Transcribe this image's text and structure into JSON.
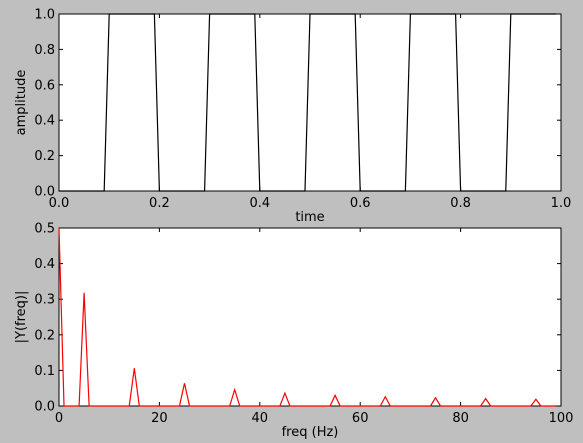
{
  "chart_data": [
    {
      "type": "line",
      "xlabel": "time",
      "ylabel": "amplitude",
      "xlim": [
        0,
        1
      ],
      "ylim": [
        0,
        1
      ],
      "xticks": [
        "0.0",
        "0.2",
        "0.4",
        "0.6",
        "0.8",
        "1.0"
      ],
      "yticks": [
        "0.0",
        "0.2",
        "0.4",
        "0.6",
        "0.8",
        "1.0"
      ],
      "grid": false,
      "series": [
        {
          "color": "#000000",
          "x": [
            0,
            0.09,
            0.1,
            0.19,
            0.2,
            0.29,
            0.3,
            0.39,
            0.4,
            0.49,
            0.5,
            0.59,
            0.6,
            0.69,
            0.7,
            0.79,
            0.8,
            0.89,
            0.9,
            0.99
          ],
          "y": [
            0,
            0,
            1,
            1,
            0,
            0,
            1,
            1,
            0,
            0,
            1,
            1,
            0,
            0,
            1,
            1,
            0,
            0,
            1,
            1
          ]
        }
      ]
    },
    {
      "type": "line",
      "xlabel": "freq (Hz)",
      "ylabel": "|Y(freq)|",
      "xlim": [
        0,
        100
      ],
      "ylim": [
        0,
        0.5
      ],
      "xticks": [
        "0",
        "20",
        "40",
        "60",
        "80",
        "100"
      ],
      "yticks": [
        "0.0",
        "0.1",
        "0.2",
        "0.3",
        "0.4",
        "0.5"
      ],
      "grid": false,
      "series": [
        {
          "color": "#ff0000",
          "x": [
            0,
            1,
            4,
            5,
            6,
            14,
            15,
            16,
            24,
            25,
            26,
            34,
            35,
            36,
            44,
            45,
            46,
            54,
            55,
            56,
            64,
            65,
            66,
            74,
            75,
            76,
            84,
            85,
            86,
            94,
            95,
            96,
            99
          ],
          "y": [
            0.5,
            0,
            0,
            0.318,
            0,
            0,
            0.106,
            0,
            0,
            0.064,
            0,
            0,
            0.046,
            0,
            0,
            0.036,
            0,
            0,
            0.03,
            0,
            0,
            0.026,
            0,
            0,
            0.023,
            0,
            0,
            0.021,
            0,
            0,
            0.019,
            0,
            0
          ]
        }
      ]
    }
  ]
}
